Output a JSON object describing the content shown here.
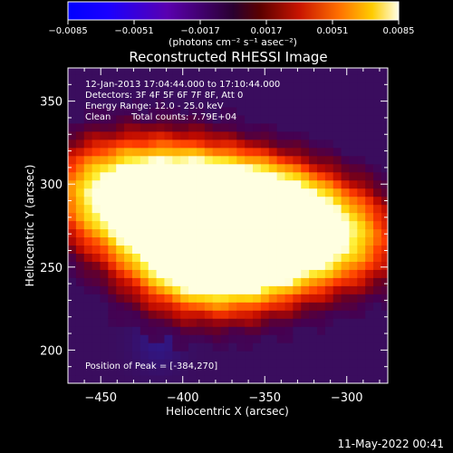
{
  "colorbar": {
    "tick_labels": [
      "-0.0085",
      "-0.0051",
      "-0.0017",
      "0.0017",
      "0.0051",
      "0.0085"
    ],
    "range": [
      -0.0085,
      0.0085
    ],
    "unit_label": "(photons cm⁻² s⁻¹ asec⁻²)"
  },
  "chart_data": {
    "type": "heatmap",
    "title": "Reconstructed RHESSI Image",
    "xlabel": "Heliocentric X (arcsec)",
    "ylabel": "Heliocentric Y (arcsec)",
    "xlim": [
      -470,
      -275
    ],
    "ylim": [
      180,
      370
    ],
    "x_ticks": [
      -450,
      -400,
      -350,
      -300
    ],
    "y_ticks": [
      200,
      250,
      300,
      350
    ],
    "x_tick_labels": [
      "−450",
      "−400",
      "−350",
      "−300"
    ],
    "y_tick_labels": [
      "200",
      "250",
      "300",
      "350"
    ],
    "sources": [
      {
        "x": -384,
        "y": 270,
        "peak": 0.0085
      },
      {
        "x": -370,
        "y": 285,
        "peak": 0.0078
      },
      {
        "x": -350,
        "y": 278,
        "peak": 0.0062
      },
      {
        "x": -325,
        "y": 272,
        "peak": 0.0052
      },
      {
        "x": -430,
        "y": 285,
        "peak": 0.0048
      },
      {
        "x": -410,
        "y": 300,
        "peak": 0.0052
      },
      {
        "x": -455,
        "y": 300,
        "peak": 0.0035
      },
      {
        "x": -395,
        "y": 250,
        "peak": 0.0045
      },
      {
        "x": -360,
        "y": 250,
        "peak": 0.004
      },
      {
        "x": -295,
        "y": 265,
        "peak": 0.0032
      }
    ],
    "annotations": {
      "time_range": "12-Jan-2013 17:04:44.000 to 17:10:44.000",
      "detectors": "Detectors: 3F 4F 5F 6F 7F 8F, Att 0",
      "energy": "Energy Range: 12.0 - 25.0 keV",
      "method": "Clean",
      "counts": "Total counts: 7.79E+04",
      "peak": "Position of Peak = [-384,270]"
    },
    "colormap": [
      "#0000ff",
      "#2a00a8",
      "#3b0a4e",
      "#7b0a0a",
      "#d21e00",
      "#ff7a00",
      "#ffd000",
      "#ffffe0"
    ]
  },
  "footer": {
    "timestamp": "11-May-2022 00:41"
  }
}
